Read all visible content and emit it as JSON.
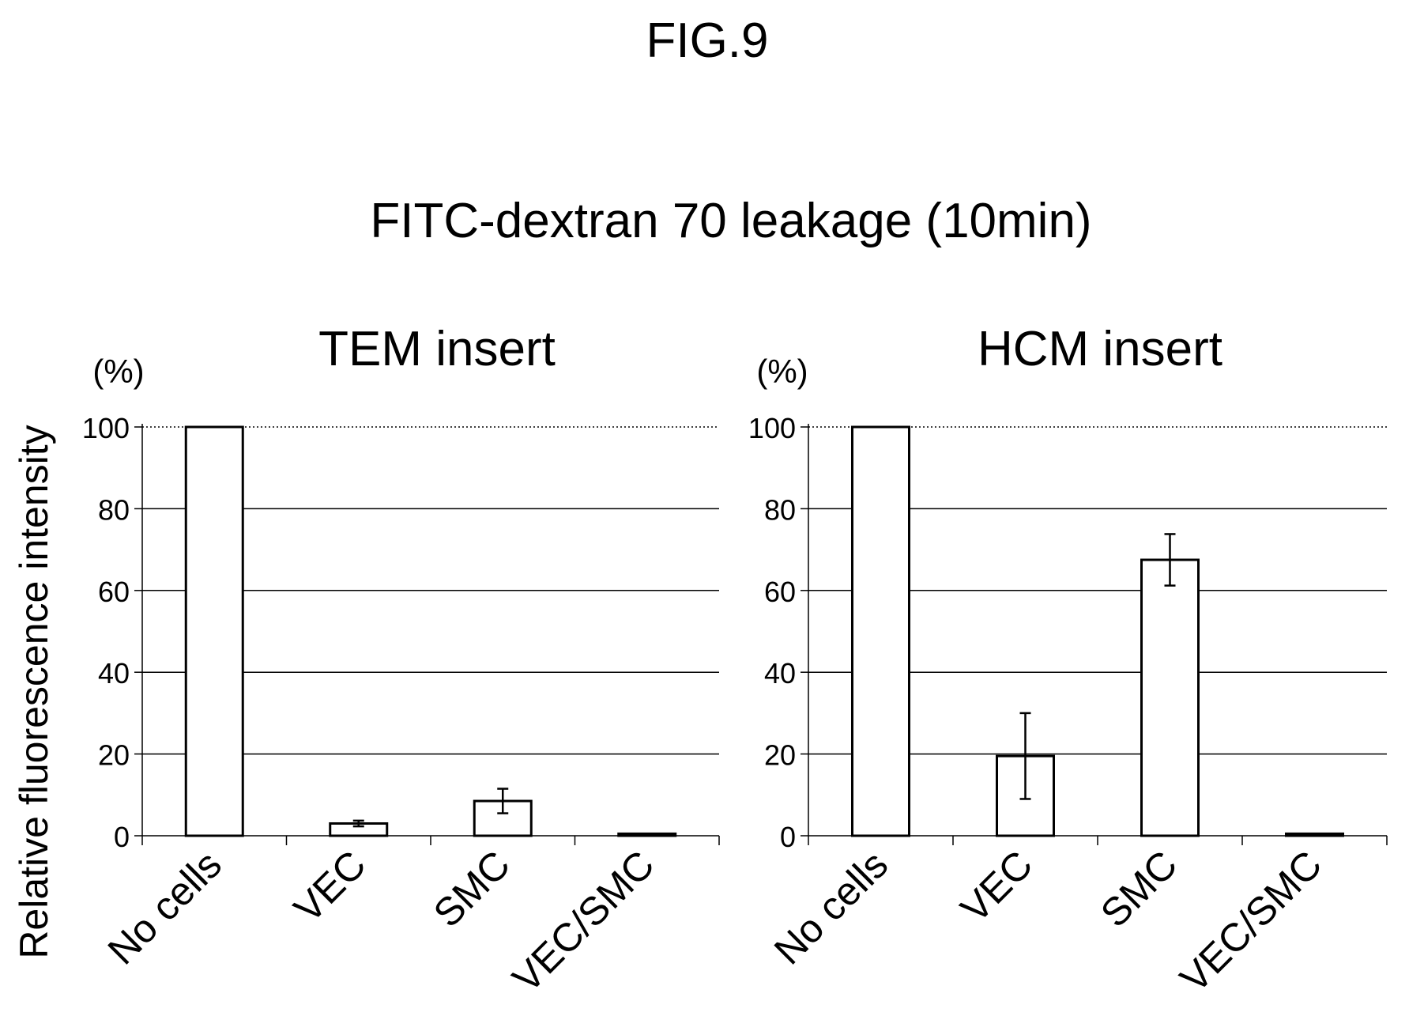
{
  "figure_label": "FIG.9",
  "main_title": "FITC-dextran 70 leakage (10min)",
  "ylabel": "Relative fluorescence intensity",
  "chart_data": [
    {
      "type": "bar",
      "title": "TEM insert",
      "unit": "(%)",
      "xlabel": "",
      "ylabel": "Relative fluorescence intensity",
      "ylim": [
        0,
        100
      ],
      "yticks": [
        0,
        20,
        40,
        60,
        80,
        100
      ],
      "grid": true,
      "categories": [
        "No cells",
        "VEC",
        "SMC",
        "VEC/SMC"
      ],
      "values": [
        100,
        3,
        8.5,
        0.5
      ],
      "errors": [
        0,
        0.7,
        3,
        0.2
      ]
    },
    {
      "type": "bar",
      "title": "HCM insert",
      "unit": "(%)",
      "xlabel": "",
      "ylabel": "",
      "ylim": [
        0,
        100
      ],
      "yticks": [
        0,
        20,
        40,
        60,
        80,
        100
      ],
      "grid": true,
      "categories": [
        "No cells",
        "VEC",
        "SMC",
        "VEC/SMC"
      ],
      "values": [
        100,
        19.5,
        67.5,
        0.5
      ],
      "errors": [
        0,
        10.5,
        6.3,
        0.2
      ]
    }
  ]
}
